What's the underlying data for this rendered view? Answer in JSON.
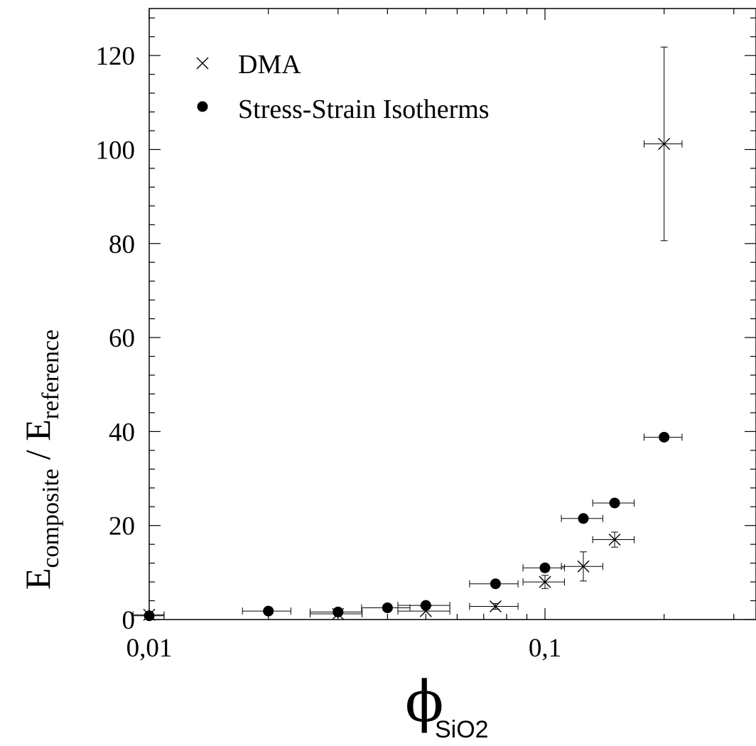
{
  "chart_data": {
    "type": "scatter",
    "xscale": "log",
    "xlim": [
      0.01,
      0.31
    ],
    "ylim": [
      0,
      130
    ],
    "grid": false,
    "legend_position": "top-left",
    "x_ticks": [
      {
        "value": 0.01,
        "label": "0,01"
      },
      {
        "value": 0.1,
        "label": "0,1"
      }
    ],
    "y_ticks": [
      {
        "value": 0,
        "label": "0"
      },
      {
        "value": 20,
        "label": "20"
      },
      {
        "value": 40,
        "label": "40"
      },
      {
        "value": 60,
        "label": "60"
      },
      {
        "value": 80,
        "label": "80"
      },
      {
        "value": 100,
        "label": "100"
      },
      {
        "value": 120,
        "label": "120"
      }
    ],
    "xlabel": {
      "main": "ϕ",
      "sub": "SiO2"
    },
    "ylabel": {
      "main1": "E",
      "sub1": "composite",
      "mid": " / E",
      "sub2": "reference"
    },
    "series": [
      {
        "name": "DMA",
        "marker": "x",
        "points": [
          {
            "x": 0.01,
            "y": 1.0,
            "xerr": [
              0.0091,
              0.0109
            ],
            "yerr": [
              1.0,
              1.0
            ]
          },
          {
            "x": 0.03,
            "y": 1.2,
            "xerr": [
              0.0255,
              0.0345
            ],
            "yerr": [
              1.2,
              1.2
            ]
          },
          {
            "x": 0.05,
            "y": 1.8,
            "xerr": [
              0.0425,
              0.0575
            ],
            "yerr": [
              1.8,
              1.8
            ]
          },
          {
            "x": 0.075,
            "y": 2.8,
            "xerr": [
              0.0645,
              0.0855
            ],
            "yerr": [
              2.2,
              3.4
            ]
          },
          {
            "x": 0.1,
            "y": 8.0,
            "xerr": [
              0.088,
              0.112
            ],
            "yerr": [
              6.6,
              9.4
            ]
          },
          {
            "x": 0.125,
            "y": 11.3,
            "xerr": [
              0.11,
              0.14
            ],
            "yerr": [
              8.2,
              14.4
            ]
          },
          {
            "x": 0.15,
            "y": 17.0,
            "xerr": [
              0.132,
              0.168
            ],
            "yerr": [
              15.4,
              18.6
            ]
          },
          {
            "x": 0.2,
            "y": 101.2,
            "xerr": [
              0.178,
              0.222
            ],
            "yerr": [
              80.6,
              121.8
            ]
          }
        ]
      },
      {
        "name": "Stress-Strain Isotherms",
        "marker": "filled-circle",
        "points": [
          {
            "x": 0.01,
            "y": 0.8,
            "xerr": [
              0.0091,
              0.0109
            ]
          },
          {
            "x": 0.02,
            "y": 1.8,
            "xerr": [
              0.0172,
              0.0228
            ]
          },
          {
            "x": 0.03,
            "y": 1.6,
            "xerr": [
              0.0255,
              0.0345
            ]
          },
          {
            "x": 0.04,
            "y": 2.5,
            "xerr": [
              0.0344,
              0.0456
            ]
          },
          {
            "x": 0.05,
            "y": 3.0,
            "xerr": [
              0.0425,
              0.0575
            ]
          },
          {
            "x": 0.075,
            "y": 7.6,
            "xerr": [
              0.0645,
              0.0855
            ]
          },
          {
            "x": 0.1,
            "y": 11.0,
            "xerr": [
              0.088,
              0.112
            ]
          },
          {
            "x": 0.125,
            "y": 21.5,
            "xerr": [
              0.11,
              0.14
            ]
          },
          {
            "x": 0.15,
            "y": 24.8,
            "xerr": [
              0.132,
              0.168
            ]
          },
          {
            "x": 0.2,
            "y": 38.8,
            "xerr": [
              0.178,
              0.222
            ]
          }
        ]
      }
    ]
  }
}
